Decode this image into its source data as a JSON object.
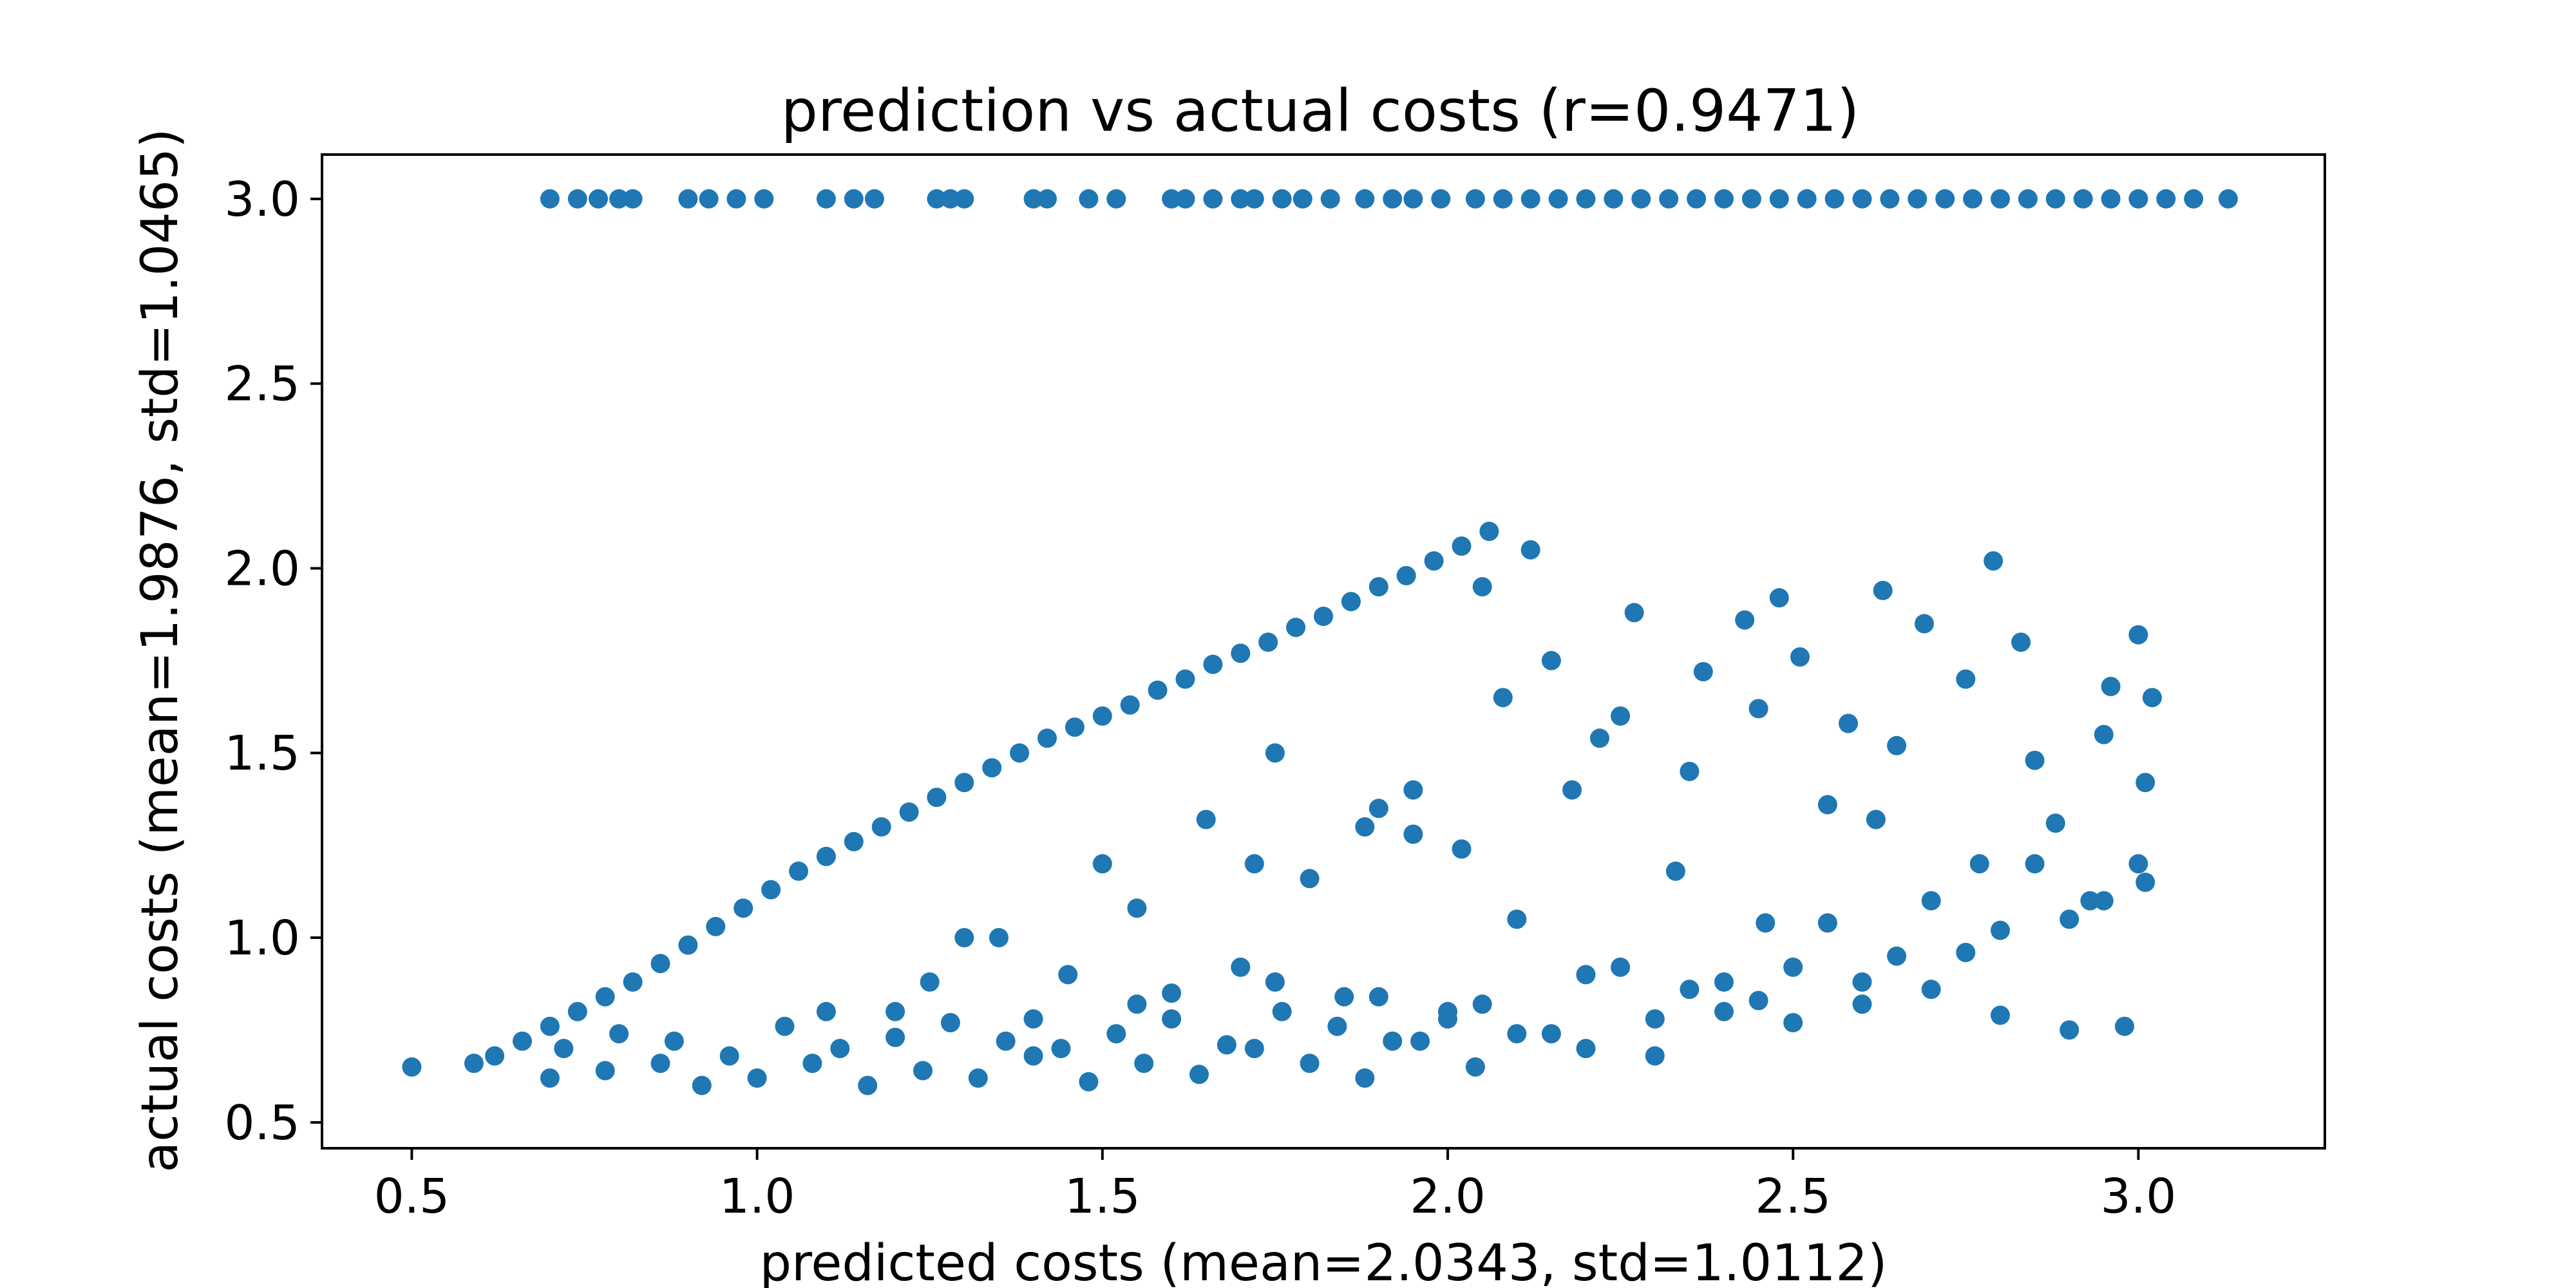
{
  "chart_data": {
    "type": "scatter",
    "title": "prediction vs actual costs (r=0.9471)",
    "xlabel": "predicted costs (mean=2.0343, std=1.0112)",
    "ylabel": "actual costs (mean=1.9876, std=1.0465)",
    "xlim": [
      0.37,
      3.27
    ],
    "ylim": [
      0.43,
      3.12
    ],
    "xticks": [
      "0.5",
      "1.0",
      "1.5",
      "2.0",
      "2.5",
      "3.0"
    ],
    "yticks": [
      "0.5",
      "1.0",
      "1.5",
      "2.0",
      "2.5",
      "3.0"
    ],
    "grid": false,
    "legend": "none",
    "marker_color": "#1f77b4",
    "series": [
      {
        "values": {
          "x": [
            0.5,
            0.59,
            0.62,
            0.66,
            0.7,
            0.74,
            0.78,
            0.82,
            0.86,
            0.9,
            0.94,
            0.98,
            1.02,
            1.06,
            1.1,
            1.14,
            1.18,
            1.22,
            1.26,
            1.3,
            1.34,
            1.38,
            1.42,
            1.46,
            1.5,
            1.54,
            1.58,
            1.62,
            1.66,
            1.7,
            1.74,
            1.78,
            1.82,
            1.86,
            1.9,
            1.94,
            1.98,
            2.02,
            2.06,
            0.7,
            0.78,
            0.86,
            0.92,
            1.0,
            1.08,
            1.16,
            1.24,
            1.32,
            1.4,
            1.48,
            1.56,
            1.64,
            1.72,
            1.8,
            1.88,
            1.96,
            2.04,
            0.72,
            0.8,
            0.88,
            0.96,
            1.04,
            1.12,
            1.2,
            1.28,
            1.36,
            1.44,
            1.52,
            1.6,
            1.68,
            1.76,
            1.84,
            1.92,
            2.0,
            2.1,
            2.2,
            2.3,
            2.4,
            2.5,
            2.6,
            2.7,
            2.8,
            2.9,
            2.98,
            1.3,
            1.45,
            1.6,
            1.75,
            1.9,
            2.05,
            2.2,
            2.35,
            2.5,
            2.65,
            2.8,
            2.95,
            1.1,
            1.25,
            1.4,
            1.55,
            1.7,
            1.85,
            2.0,
            2.15,
            2.3,
            2.45,
            2.6,
            2.75,
            2.9,
            3.01,
            1.5,
            1.65,
            1.8,
            1.95,
            2.1,
            2.25,
            2.4,
            2.55,
            2.7,
            2.85,
            3.0,
            2.05,
            2.15,
            2.25,
            2.35,
            2.45,
            2.55,
            2.65,
            2.75,
            2.85,
            2.95,
            3.02,
            1.95,
            2.12,
            2.27,
            2.43,
            2.51,
            2.63,
            2.79,
            2.83,
            2.96,
            3.0,
            1.75,
            1.9,
            2.08,
            2.22,
            2.37,
            2.48,
            2.58,
            2.69,
            2.88,
            3.01,
            1.2,
            1.35,
            1.55,
            1.72,
            1.88,
            2.02,
            2.18,
            2.33,
            2.46,
            2.62,
            2.77,
            2.93,
            0.7,
            0.74,
            0.77,
            0.8,
            0.82,
            0.9,
            0.93,
            0.97,
            1.01,
            1.1,
            1.14,
            1.17,
            1.26,
            1.28,
            1.3,
            1.4,
            1.42,
            1.48,
            1.52,
            1.6,
            1.62,
            1.66,
            1.7,
            1.72,
            1.76,
            1.79,
            1.83,
            1.88,
            1.92,
            1.95,
            1.99,
            2.04,
            2.08,
            2.12,
            2.16,
            2.2,
            2.24,
            2.28,
            2.32,
            2.36,
            2.4,
            2.44,
            2.48,
            2.52,
            2.56,
            2.6,
            2.64,
            2.68,
            2.72,
            2.76,
            2.8,
            2.84,
            2.88,
            2.92,
            2.96,
            3.0,
            3.04,
            3.08,
            3.13
          ],
          "y": [
            0.65,
            0.66,
            0.68,
            0.72,
            0.76,
            0.8,
            0.84,
            0.88,
            0.93,
            0.98,
            1.03,
            1.08,
            1.13,
            1.18,
            1.22,
            1.26,
            1.3,
            1.34,
            1.38,
            1.42,
            1.46,
            1.5,
            1.54,
            1.57,
            1.6,
            1.63,
            1.67,
            1.7,
            1.74,
            1.77,
            1.8,
            1.84,
            1.87,
            1.91,
            1.95,
            1.98,
            2.02,
            2.06,
            2.1,
            0.62,
            0.64,
            0.66,
            0.6,
            0.62,
            0.66,
            0.6,
            0.64,
            0.62,
            0.68,
            0.61,
            0.66,
            0.63,
            0.7,
            0.66,
            0.62,
            0.72,
            0.65,
            0.7,
            0.74,
            0.72,
            0.68,
            0.76,
            0.7,
            0.73,
            0.77,
            0.72,
            0.7,
            0.74,
            0.78,
            0.71,
            0.8,
            0.76,
            0.72,
            0.78,
            0.74,
            0.7,
            0.68,
            0.8,
            0.77,
            0.82,
            0.86,
            0.79,
            0.75,
            0.76,
            1.0,
            0.9,
            0.85,
            0.88,
            0.84,
            0.82,
            0.9,
            0.86,
            0.92,
            0.95,
            1.02,
            1.1,
            0.8,
            0.88,
            0.78,
            0.82,
            0.92,
            0.84,
            0.8,
            0.74,
            0.78,
            0.83,
            0.88,
            0.96,
            1.05,
            1.15,
            1.2,
            1.32,
            1.16,
            1.28,
            1.05,
            0.92,
            0.88,
            1.04,
            1.1,
            1.2,
            1.2,
            1.95,
            1.75,
            1.6,
            1.45,
            1.62,
            1.36,
            1.52,
            1.7,
            1.48,
            1.55,
            1.65,
            1.4,
            2.05,
            1.88,
            1.86,
            1.76,
            1.94,
            2.02,
            1.8,
            1.68,
            1.82,
            1.5,
            1.35,
            1.65,
            1.54,
            1.72,
            1.92,
            1.58,
            1.85,
            1.31,
            1.42,
            0.8,
            1.0,
            1.08,
            1.2,
            1.3,
            1.24,
            1.4,
            1.18,
            1.04,
            1.32,
            1.2,
            1.1,
            3.0,
            3.0,
            3.0,
            3.0,
            3.0,
            3.0,
            3.0,
            3.0,
            3.0,
            3.0,
            3.0,
            3.0,
            3.0,
            3.0,
            3.0,
            3.0,
            3.0,
            3.0,
            3.0,
            3.0,
            3.0,
            3.0,
            3.0,
            3.0,
            3.0,
            3.0,
            3.0,
            3.0,
            3.0,
            3.0,
            3.0,
            3.0,
            3.0,
            3.0,
            3.0,
            3.0,
            3.0,
            3.0,
            3.0,
            3.0,
            3.0,
            3.0,
            3.0,
            3.0,
            3.0,
            3.0,
            3.0,
            3.0,
            3.0,
            3.0,
            3.0,
            3.0,
            3.0,
            3.0,
            3.0,
            3.0,
            3.0,
            3.0,
            3.0
          ]
        }
      }
    ]
  }
}
